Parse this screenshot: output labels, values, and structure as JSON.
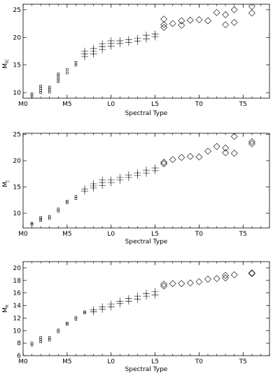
{
  "chart_data": [
    {
      "type": "scatter",
      "xlabel": "Spectral Type",
      "ylabel": "M",
      "ylabel_sub": "I",
      "ylabel_sub2": "C",
      "x_ticks": [
        {
          "value": 0,
          "label": "M0"
        },
        {
          "value": 5,
          "label": "M5"
        },
        {
          "value": 10,
          "label": "L0"
        },
        {
          "value": 15,
          "label": "L5"
        },
        {
          "value": 20,
          "label": "T0"
        },
        {
          "value": 25,
          "label": "T5"
        }
      ],
      "xlim": [
        0,
        28
      ],
      "ylim": [
        26,
        9
      ],
      "y_ticks": [
        10,
        15,
        20,
        25
      ],
      "y_tick_labels": [
        "10",
        "15",
        "20",
        "25"
      ],
      "series": [
        {
          "marker": "square-small",
          "points": [
            [
              1,
              9.4
            ],
            [
              1,
              9.8
            ],
            [
              2,
              10.0
            ],
            [
              2,
              10.4
            ],
            [
              2,
              10.8
            ],
            [
              2,
              11.2
            ],
            [
              3,
              10.1
            ],
            [
              3,
              10.6
            ],
            [
              3,
              11.0
            ],
            [
              4,
              12.0
            ],
            [
              4,
              12.5
            ],
            [
              4,
              13.0
            ],
            [
              4,
              13.4
            ],
            [
              5,
              13.6
            ],
            [
              5,
              14.2
            ],
            [
              6,
              15.0
            ],
            [
              6,
              15.5
            ]
          ]
        },
        {
          "marker": "plus",
          "points": [
            [
              7,
              16.5
            ],
            [
              7,
              17.0
            ],
            [
              7,
              17.5
            ],
            [
              8,
              17.0
            ],
            [
              8,
              17.5
            ],
            [
              8,
              18.0
            ],
            [
              9,
              17.8
            ],
            [
              9,
              18.3
            ],
            [
              9,
              18.8
            ],
            [
              10,
              18.4
            ],
            [
              10,
              18.9
            ],
            [
              10,
              19.4
            ],
            [
              11,
              18.9
            ],
            [
              11,
              19.4
            ],
            [
              12,
              19.1
            ],
            [
              12,
              19.6
            ],
            [
              13,
              19.3
            ],
            [
              13,
              19.8
            ],
            [
              14,
              19.7
            ],
            [
              14,
              20.4
            ],
            [
              15,
              20.1
            ],
            [
              15,
              20.6
            ]
          ]
        },
        {
          "marker": "diamond",
          "points": [
            [
              16,
              21.8
            ],
            [
              16,
              22.3
            ],
            [
              16,
              23.3
            ],
            [
              17,
              22.5
            ],
            [
              18,
              22.2
            ],
            [
              18,
              23.0
            ],
            [
              19,
              23.1
            ],
            [
              20,
              23.2
            ],
            [
              21,
              23.0
            ],
            [
              22,
              24.5
            ],
            [
              23,
              22.3
            ],
            [
              23,
              24.1
            ],
            [
              24,
              22.7
            ],
            [
              24,
              25.0
            ],
            [
              26,
              24.4
            ],
            [
              26,
              25.6
            ]
          ]
        }
      ]
    },
    {
      "type": "scatter",
      "xlabel": "Spectral Type",
      "ylabel": "M",
      "ylabel_sub": "J",
      "x_ticks": [
        {
          "value": 0,
          "label": "M0"
        },
        {
          "value": 5,
          "label": "M5"
        },
        {
          "value": 10,
          "label": "L0"
        },
        {
          "value": 15,
          "label": "L5"
        },
        {
          "value": 20,
          "label": "T0"
        },
        {
          "value": 25,
          "label": "T5"
        }
      ],
      "xlim": [
        0,
        28
      ],
      "ylim": [
        25.2,
        7.2
      ],
      "y_ticks": [
        10,
        15,
        20,
        25
      ],
      "y_tick_labels": [
        "10",
        "15",
        "20",
        "25"
      ],
      "series": [
        {
          "marker": "square-small",
          "points": [
            [
              1,
              7.9
            ],
            [
              1,
              8.1
            ],
            [
              2,
              8.6
            ],
            [
              2,
              8.9
            ],
            [
              2,
              9.2
            ],
            [
              3,
              9.0
            ],
            [
              3,
              9.4
            ],
            [
              4,
              10.4
            ],
            [
              4,
              10.8
            ],
            [
              5,
              12.0
            ],
            [
              5,
              12.3
            ],
            [
              6,
              12.8
            ],
            [
              6,
              13.2
            ]
          ]
        },
        {
          "marker": "plus",
          "points": [
            [
              7,
              14.2
            ],
            [
              7,
              14.6
            ],
            [
              8,
              14.8
            ],
            [
              8,
              15.2
            ],
            [
              8,
              15.6
            ],
            [
              9,
              15.3
            ],
            [
              9,
              15.8
            ],
            [
              9,
              16.3
            ],
            [
              10,
              15.8
            ],
            [
              10,
              16.3
            ],
            [
              11,
              16.3
            ],
            [
              11,
              16.8
            ],
            [
              12,
              16.8
            ],
            [
              12,
              17.3
            ],
            [
              13,
              17.2
            ],
            [
              13,
              17.7
            ],
            [
              14,
              17.6
            ],
            [
              14,
              18.2
            ],
            [
              15,
              18.1
            ],
            [
              15,
              18.6
            ]
          ]
        },
        {
          "marker": "diamond",
          "points": [
            [
              16,
              19.4
            ],
            [
              16,
              19.7
            ],
            [
              17,
              20.2
            ],
            [
              18,
              20.6
            ],
            [
              19,
              20.8
            ],
            [
              20,
              20.7
            ],
            [
              21,
              21.8
            ],
            [
              22,
              22.7
            ],
            [
              23,
              21.5
            ],
            [
              23,
              22.4
            ],
            [
              24,
              21.4
            ],
            [
              24,
              24.6
            ],
            [
              26,
              23.2
            ],
            [
              26,
              23.6
            ]
          ]
        }
      ]
    },
    {
      "type": "scatter",
      "xlabel": "Spectral Type",
      "ylabel": "M",
      "ylabel_sub": "K",
      "x_ticks": [
        {
          "value": 0,
          "label": "M0"
        },
        {
          "value": 5,
          "label": "M5"
        },
        {
          "value": 10,
          "label": "L0"
        },
        {
          "value": 15,
          "label": "L5"
        },
        {
          "value": 20,
          "label": "T0"
        },
        {
          "value": 25,
          "label": "T5"
        }
      ],
      "xlim": [
        0,
        28
      ],
      "ylim": [
        21,
        6
      ],
      "y_ticks": [
        6,
        8,
        10,
        12,
        14,
        16,
        18,
        20
      ],
      "y_tick_labels": [
        "6",
        "8",
        "10",
        "12",
        "14",
        "16",
        "18",
        "20"
      ],
      "series": [
        {
          "marker": "square-small",
          "points": [
            [
              1,
              7.7
            ],
            [
              1,
              8.0
            ],
            [
              2,
              8.2
            ],
            [
              2,
              8.6
            ],
            [
              2,
              8.9
            ],
            [
              3,
              8.5
            ],
            [
              3,
              8.9
            ],
            [
              4,
              9.8
            ],
            [
              4,
              10.1
            ],
            [
              5,
              11.0
            ],
            [
              5,
              11.2
            ],
            [
              6,
              11.8
            ],
            [
              6,
              12.1
            ],
            [
              7,
              12.8
            ],
            [
              7,
              13.0
            ]
          ]
        },
        {
          "marker": "plus",
          "points": [
            [
              8,
              13.0
            ],
            [
              8,
              13.3
            ],
            [
              9,
              13.4
            ],
            [
              9,
              13.8
            ],
            [
              10,
              13.8
            ],
            [
              10,
              14.2
            ],
            [
              11,
              14.3
            ],
            [
              11,
              14.7
            ],
            [
              12,
              14.7
            ],
            [
              12,
              15.1
            ],
            [
              13,
              15.0
            ],
            [
              13,
              15.5
            ],
            [
              14,
              15.5
            ],
            [
              14,
              15.9
            ],
            [
              15,
              15.7
            ],
            [
              15,
              16.2
            ]
          ]
        },
        {
          "marker": "diamond",
          "points": [
            [
              16,
              17.1
            ],
            [
              16,
              17.4
            ],
            [
              17,
              17.5
            ],
            [
              18,
              17.5
            ],
            [
              19,
              17.6
            ],
            [
              20,
              17.8
            ],
            [
              21,
              18.2
            ],
            [
              22,
              18.3
            ],
            [
              23,
              18.4
            ],
            [
              23,
              18.8
            ],
            [
              24,
              18.9
            ],
            [
              26,
              19.1
            ],
            [
              26,
              19.2
            ]
          ]
        }
      ]
    }
  ]
}
